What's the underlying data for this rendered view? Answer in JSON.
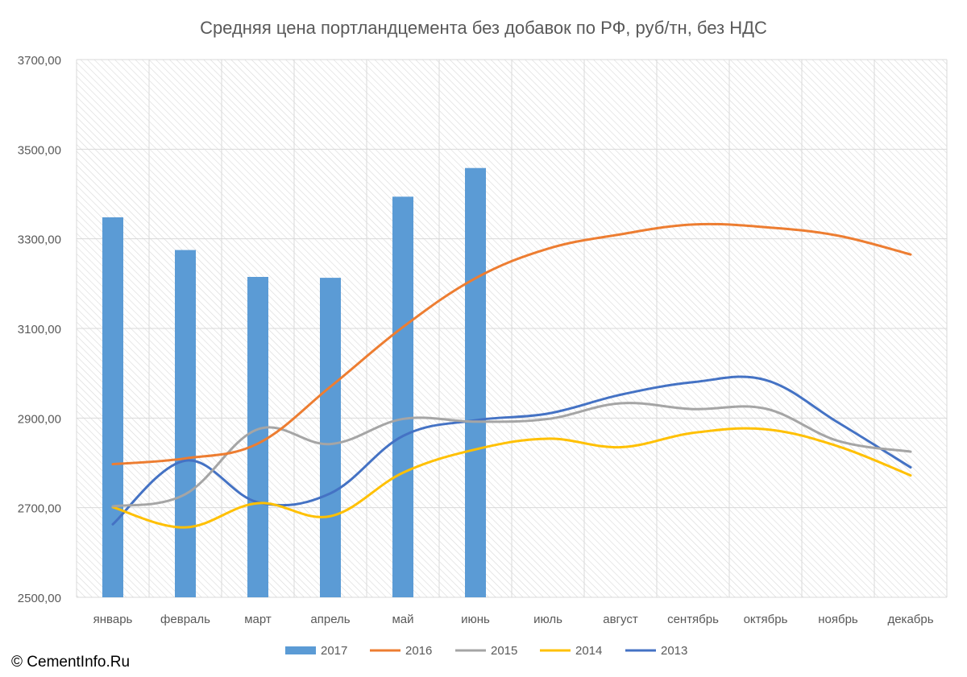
{
  "copyright": "© CementInfo.Ru",
  "chart_data": {
    "type": "bar",
    "title": "Средняя цена портландцемента без добавок по РФ, руб/тн, без НДС",
    "xlabel": "",
    "ylabel": "",
    "ylim": [
      2500,
      3700
    ],
    "y_ticks": [
      2500,
      2700,
      2900,
      3100,
      3300,
      3500,
      3700
    ],
    "y_tick_labels": [
      "2500,00",
      "2700,00",
      "2900,00",
      "3100,00",
      "3300,00",
      "3500,00",
      "3700,00"
    ],
    "grid": true,
    "legend_position": "bottom",
    "categories": [
      "январь",
      "февраль",
      "март",
      "апрель",
      "май",
      "июнь",
      "июль",
      "август",
      "сентябрь",
      "октябрь",
      "ноябрь",
      "декабрь"
    ],
    "series": [
      {
        "name": "2017",
        "type": "bar",
        "color": "#5b9bd5",
        "values": [
          3348,
          3275,
          3215,
          3213,
          3394,
          3458,
          null,
          null,
          null,
          null,
          null,
          null
        ]
      },
      {
        "name": "2016",
        "type": "line",
        "color": "#ed7d31",
        "values": [
          2797,
          2810,
          2843,
          2970,
          3103,
          3212,
          3278,
          3310,
          3332,
          3326,
          3307,
          3265
        ]
      },
      {
        "name": "2015",
        "type": "line",
        "color": "#a5a5a5",
        "values": [
          2703,
          2730,
          2875,
          2842,
          2898,
          2892,
          2898,
          2933,
          2920,
          2921,
          2849,
          2825
        ]
      },
      {
        "name": "2014",
        "type": "line",
        "color": "#ffc000",
        "values": [
          2701,
          2656,
          2710,
          2681,
          2778,
          2830,
          2854,
          2835,
          2867,
          2875,
          2837,
          2772
        ]
      },
      {
        "name": "2013",
        "type": "line",
        "color": "#4472c4",
        "values": [
          2663,
          2805,
          2712,
          2732,
          2860,
          2895,
          2910,
          2952,
          2980,
          2985,
          2890,
          2790
        ]
      }
    ]
  }
}
